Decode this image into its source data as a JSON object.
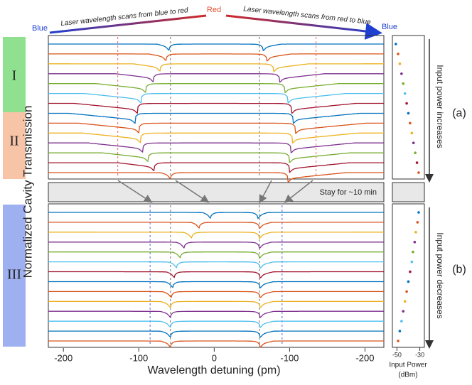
{
  "chart_data": [
    {
      "type": "line",
      "header": {
        "left": "Blue",
        "middle": "Red",
        "right": "Blue",
        "scan_left": "Laser wavelength scans from blue to red",
        "scan_right": "Laser wavelength scans from red to blue"
      },
      "xlabel": "Wavelength detuning (pm)",
      "ylabel": "Normalized Cavity Transmission",
      "xlim": [
        -220,
        225
      ],
      "xticks": [
        {
          "value": -200,
          "label": "-200"
        },
        {
          "value": -100,
          "label": "-100"
        },
        0,
        {
          "value": 100,
          "label": "-100"
        },
        {
          "value": 200,
          "label": "-200"
        }
      ],
      "regions": [
        "I",
        "II",
        "III"
      ],
      "band_text": "Stay for ~10 min",
      "panels": [
        {
          "label": "(a)",
          "guides": [
            {
              "x": -58,
              "color": "#888888"
            },
            {
              "x": 60,
              "color": "#888888"
            },
            {
              "x": -128,
              "color": "#f08080"
            },
            {
              "x": 135,
              "color": "#f08080"
            }
          ],
          "traces": [
            {
              "color": "#0072bd",
              "left": -60,
              "right": 65
            },
            {
              "color": "#d95319",
              "left": -64,
              "right": 70
            },
            {
              "color": "#edb120",
              "left": -72,
              "right": 79
            },
            {
              "color": "#7e2f8e",
              "left": -81,
              "right": 87
            },
            {
              "color": "#77ac30",
              "left": -91,
              "right": 94
            },
            {
              "color": "#4dbeee",
              "left": -97,
              "right": 98
            },
            {
              "color": "#a2142f",
              "left": -102,
              "right": 103
            },
            {
              "color": "#0072bd",
              "left": -105,
              "right": 105
            },
            {
              "color": "#d95319",
              "left": -100,
              "right": 108
            },
            {
              "color": "#edb120",
              "left": -98,
              "right": 104
            },
            {
              "color": "#7e2f8e",
              "left": -95,
              "right": 102
            },
            {
              "color": "#77ac30",
              "left": -88,
              "right": 100
            },
            {
              "color": "#a2142f",
              "left": -80,
              "right": 100
            },
            {
              "color": "#d95319",
              "left": -58,
              "right": 98
            }
          ]
        },
        {
          "label": "(b)",
          "guides": [
            {
              "x": -85,
              "color": "#6a7fdb"
            },
            {
              "x": -58,
              "color": "#888888"
            },
            {
              "x": 60,
              "color": "#888888"
            },
            {
              "x": 90,
              "color": "#6a7fdb"
            }
          ],
          "traces": [
            {
              "color": "#0072bd",
              "left": -5,
              "right": 58
            },
            {
              "color": "#d95319",
              "left": -20,
              "right": 60
            },
            {
              "color": "#edb120",
              "left": -30,
              "right": 60
            },
            {
              "color": "#7e2f8e",
              "left": -40,
              "right": 60
            },
            {
              "color": "#77ac30",
              "left": -45,
              "right": 60
            },
            {
              "color": "#4dbeee",
              "left": -50,
              "right": 61
            },
            {
              "color": "#a2142f",
              "left": -53,
              "right": 61
            },
            {
              "color": "#0072bd",
              "left": -55,
              "right": 61
            },
            {
              "color": "#d95319",
              "left": -57,
              "right": 61
            },
            {
              "color": "#edb120",
              "left": -58,
              "right": 61
            },
            {
              "color": "#7e2f8e",
              "left": -58,
              "right": 61
            },
            {
              "color": "#4dbeee",
              "left": -58,
              "right": 61
            },
            {
              "color": "#0072bd",
              "left": -58,
              "right": 61
            },
            {
              "color": "#d95319",
              "left": -58,
              "right": 61
            }
          ]
        }
      ]
    },
    {
      "type": "scatter",
      "xlabel": "Input Power",
      "xunit": "(dBm)",
      "xlim": [
        -54,
        -26
      ],
      "xticks": [
        -50,
        -30
      ],
      "arrows": [
        "Input power increases",
        "Input power decreases"
      ],
      "panels": [
        {
          "values": [
            -51,
            -49,
            -47.5,
            -46,
            -44.5,
            -43,
            -41.5,
            -40,
            -38.5,
            -37,
            -35.5,
            -34,
            -32.5,
            -31
          ]
        },
        {
          "values": [
            -31,
            -32,
            -33.5,
            -34.5,
            -36,
            -37,
            -38.5,
            -40,
            -41.5,
            -43,
            -44.5,
            -46,
            -47.5,
            -49
          ]
        }
      ]
    }
  ]
}
